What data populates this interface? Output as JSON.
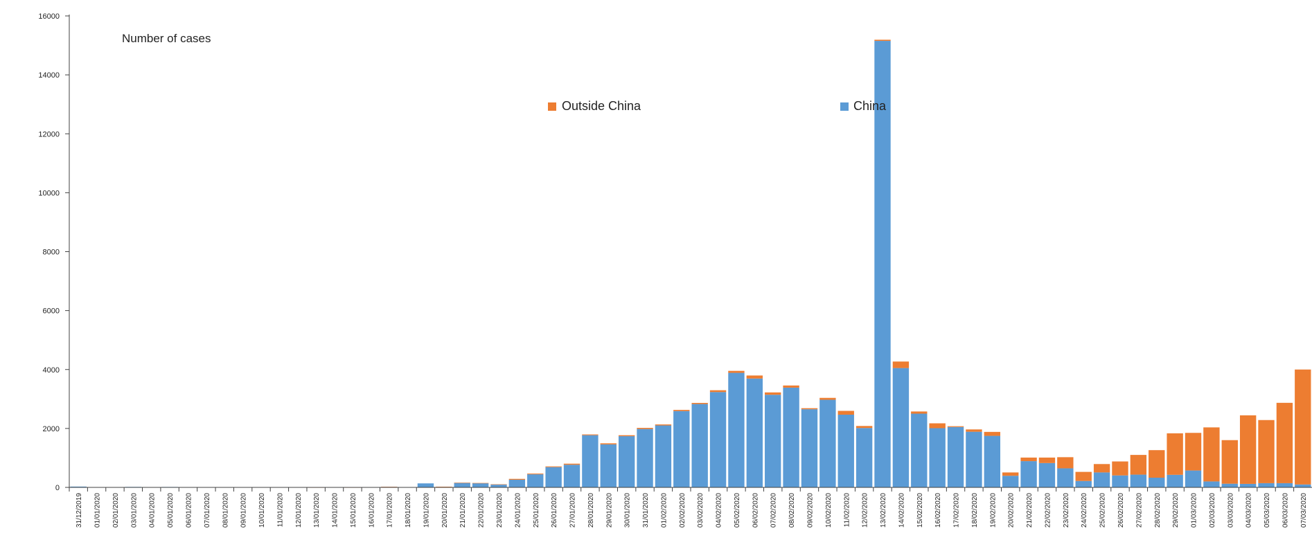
{
  "chart_data": {
    "type": "bar",
    "stacked": true,
    "title": "Number of cases",
    "xlabel": "",
    "ylabel": "",
    "ylim": [
      0,
      16000
    ],
    "yticks": [
      "0",
      "2000",
      "4000",
      "6000",
      "8000",
      "10000",
      "12000",
      "14000",
      "16000"
    ],
    "grid": false,
    "legend": "top-center",
    "categories": [
      "31/12/2019",
      "01/01/2020",
      "02/01/2020",
      "03/01/2020",
      "04/01/2020",
      "05/01/2020",
      "06/01/2020",
      "07/01/2020",
      "08/01/2020",
      "09/01/2020",
      "10/01/2020",
      "11/01/2020",
      "12/01/2020",
      "13/01/2020",
      "14/01/2020",
      "15/01/2020",
      "16/01/2020",
      "17/01/2020",
      "18/01/2020",
      "19/01/2020",
      "20/01/2020",
      "21/01/2020",
      "22/01/2020",
      "23/01/2020",
      "24/01/2020",
      "25/01/2020",
      "26/01/2020",
      "27/01/2020",
      "28/01/2020",
      "29/01/2020",
      "30/01/2020",
      "31/01/2020",
      "01/02/2020",
      "02/02/2020",
      "03/02/2020",
      "04/02/2020",
      "05/02/2020",
      "06/02/2020",
      "07/02/2020",
      "08/02/2020",
      "09/02/2020",
      "10/02/2020",
      "11/02/2020",
      "12/02/2020",
      "13/02/2020",
      "14/02/2020",
      "15/02/2020",
      "16/02/2020",
      "17/02/2020",
      "18/02/2020",
      "19/02/2020",
      "20/02/2020",
      "21/02/2020",
      "22/02/2020",
      "23/02/2020",
      "24/02/2020",
      "25/02/2020",
      "26/02/2020",
      "27/02/2020",
      "28/02/2020",
      "29/02/2020",
      "01/03/2020",
      "02/03/2020",
      "03/03/2020",
      "04/03/2020",
      "05/03/2020",
      "06/03/2020",
      "07/03/2020"
    ],
    "series": [
      {
        "name": "China",
        "color": "#5b9bd5",
        "values": [
          27,
          0,
          0,
          17,
          0,
          15,
          0,
          0,
          0,
          0,
          0,
          0,
          0,
          0,
          0,
          0,
          4,
          17,
          0,
          136,
          20,
          151,
          140,
          97,
          259,
          444,
          688,
          769,
          1771,
          1459,
          1737,
          1982,
          2102,
          2590,
          2829,
          3235,
          3887,
          3694,
          3143,
          3385,
          2652,
          2973,
          2467,
          2015,
          15153,
          4050,
          2502,
          2009,
          2048,
          1888,
          1749,
          394,
          891,
          826,
          647,
          218,
          508,
          406,
          433,
          329,
          427,
          573,
          202,
          125,
          119,
          143,
          143,
          99
        ]
      },
      {
        "name": "Outside China",
        "color": "#ed7d31",
        "values": [
          0,
          0,
          0,
          0,
          0,
          0,
          0,
          0,
          0,
          0,
          0,
          0,
          0,
          1,
          0,
          1,
          0,
          3,
          0,
          0,
          3,
          11,
          10,
          8,
          30,
          25,
          25,
          36,
          26,
          37,
          33,
          38,
          34,
          40,
          38,
          62,
          68,
          103,
          80,
          73,
          35,
          65,
          130,
          69,
          39,
          221,
          74,
          165,
          28,
          79,
          134,
          113,
          121,
          186,
          378,
          308,
          284,
          474,
          669,
          935,
          1408,
          1277,
          1834,
          1479,
          2326,
          2142,
          2727,
          3901
        ]
      }
    ]
  },
  "colors": {
    "axis": "#404040",
    "background": "#ffffff"
  }
}
